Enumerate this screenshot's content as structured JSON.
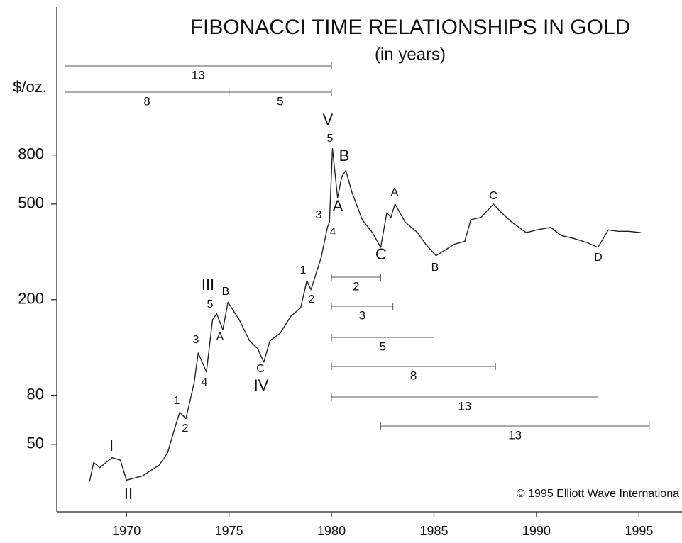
{
  "chart_data": {
    "type": "line",
    "title": "FIBONACCI TIME RELATIONSHIPS IN GOLD",
    "subtitle": "(in years)",
    "ylabel": "$/oz.",
    "log_y": true,
    "grid": false,
    "xlim": [
      1966.6,
      1997.1
    ],
    "ylim": [
      26.2,
      3300
    ],
    "xticks": [
      1970,
      1975,
      1980,
      1985,
      1990,
      1995
    ],
    "yticks": [
      50,
      80,
      200,
      500,
      800
    ],
    "series": [
      {
        "color": "#222222",
        "x": [
          1968.2,
          1968.4,
          1968.7,
          1969.0,
          1969.3,
          1969.7,
          1970.0,
          1970.3,
          1970.8,
          1971.2,
          1971.6,
          1972.0,
          1972.4,
          1972.6,
          1972.9,
          1973.3,
          1973.5,
          1973.9,
          1974.2,
          1974.4,
          1974.7,
          1974.95,
          1975.5,
          1976.0,
          1976.4,
          1976.7,
          1977.0,
          1977.5,
          1978.0,
          1978.5,
          1978.8,
          1979.0,
          1979.5,
          1979.8,
          1979.9,
          1980.05,
          1980.3,
          1980.5,
          1980.7,
          1981.0,
          1981.5,
          1982.0,
          1982.4,
          1982.7,
          1982.9,
          1983.1,
          1983.6,
          1984.2,
          1984.6,
          1985.1,
          1985.5,
          1986.0,
          1986.5,
          1986.8,
          1987.3,
          1987.9,
          1988.3,
          1988.8,
          1989.5,
          1990.0,
          1990.7,
          1991.2,
          1991.8,
          1992.5,
          1993.0,
          1993.5,
          1994.0,
          1994.5,
          1995.1
        ],
        "values": [
          35,
          42,
          40,
          42,
          44,
          43,
          35.5,
          36,
          37,
          39,
          41,
          46,
          60,
          68,
          64,
          90,
          120,
          100,
          165,
          175,
          150,
          195,
          165,
          135,
          125,
          110,
          135,
          145,
          170,
          185,
          240,
          220,
          300,
          400,
          420,
          850,
          530,
          650,
          690,
          560,
          430,
          380,
          330,
          460,
          440,
          500,
          420,
          380,
          340,
          305,
          320,
          340,
          350,
          430,
          440,
          500,
          460,
          420,
          380,
          390,
          400,
          370,
          360,
          345,
          330,
          390,
          385,
          385,
          380
        ]
      }
    ],
    "wave_labels": [
      "I",
      "II",
      "1",
      "2",
      "3",
      "4",
      "5",
      "III",
      "B",
      "A",
      "C",
      "IV",
      "1",
      "2",
      "3",
      "4",
      "5",
      "V",
      "A",
      "B",
      "C",
      "A",
      "B",
      "C",
      "D"
    ],
    "spans": [
      {
        "label": "13",
        "start": 1967,
        "end": 1980
      },
      {
        "label": "8",
        "start": 1967,
        "end": 1975
      },
      {
        "label": "5",
        "start": 1975,
        "end": 1980
      },
      {
        "label": "2",
        "start": 1980,
        "end": 1982.4
      },
      {
        "label": "3",
        "start": 1980,
        "end": 1983
      },
      {
        "label": "5",
        "start": 1980,
        "end": 1985
      },
      {
        "label": "8",
        "start": 1980,
        "end": 1988
      },
      {
        "label": "13",
        "start": 1980,
        "end": 1993
      },
      {
        "label": "13",
        "start": 1982.4,
        "end": 1995.5
      }
    ],
    "copyright": "© 1995 Elliott Wave Internationa"
  }
}
